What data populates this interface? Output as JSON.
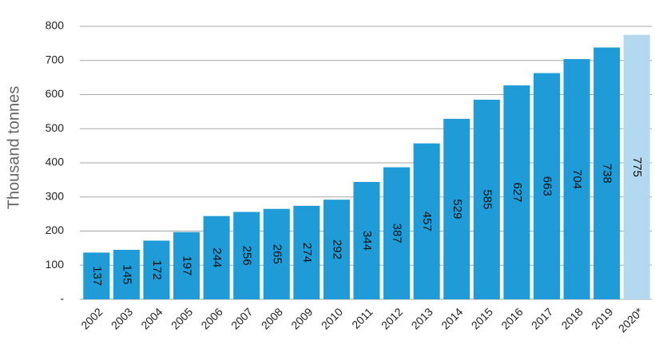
{
  "chart_data": {
    "type": "bar",
    "y_label": "Thousand tonnes",
    "categories": [
      "2002",
      "2003",
      "2004",
      "2005",
      "2006",
      "2007",
      "2008",
      "2009",
      "2010",
      "2011",
      "2012",
      "2013",
      "2014",
      "2015",
      "2016",
      "2017",
      "2018",
      "2019",
      "2020*"
    ],
    "values": [
      137,
      145,
      172,
      197,
      244,
      256,
      265,
      274,
      292,
      344,
      387,
      457,
      529,
      585,
      627,
      663,
      704,
      738,
      775
    ],
    "colors": [
      "#1f9bd7",
      "#1f9bd7",
      "#1f9bd7",
      "#1f9bd7",
      "#1f9bd7",
      "#1f9bd7",
      "#1f9bd7",
      "#1f9bd7",
      "#1f9bd7",
      "#1f9bd7",
      "#1f9bd7",
      "#1f9bd7",
      "#1f9bd7",
      "#1f9bd7",
      "#1f9bd7",
      "#1f9bd7",
      "#1f9bd7",
      "#1f9bd7",
      "#b3d9f0"
    ],
    "ylim": [
      0,
      800
    ],
    "yticks": [
      {
        "value": 0,
        "label": "-"
      },
      100,
      200,
      300,
      400,
      500,
      600,
      700,
      800
    ],
    "grid": true
  }
}
